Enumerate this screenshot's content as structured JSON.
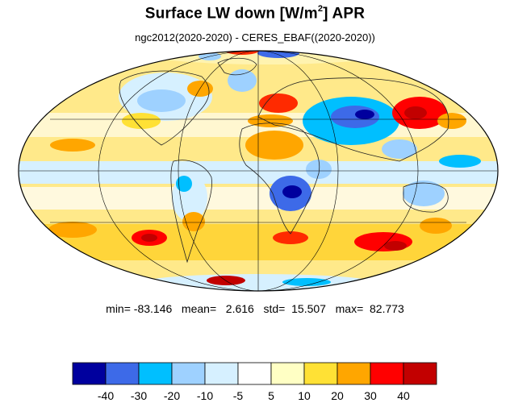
{
  "title": {
    "prefix": "Surface LW down [W/m",
    "superscript": "2",
    "suffix": "]  APR"
  },
  "subtitle": "ngc2012(2020-2020) - CERES_EBAF((2020-2020))",
  "stats": {
    "text": "min= -83.146   mean=   2.616   std=  15.507   max=  82.773"
  },
  "map": {
    "projection": "mollweide",
    "field": "difference",
    "gridlines": true
  },
  "colorbar": {
    "colors": [
      "#00009e",
      "#3d6ae8",
      "#00bfff",
      "#9ed1ff",
      "#d6f0ff",
      "#ffffff",
      "#ffffc4",
      "#ffe135",
      "#ffa600",
      "#ff0000",
      "#c20000"
    ],
    "tick_labels": [
      "-40",
      "-30",
      "-20",
      "-10",
      "-5",
      "5",
      "10",
      "20",
      "30",
      "40"
    ]
  }
}
